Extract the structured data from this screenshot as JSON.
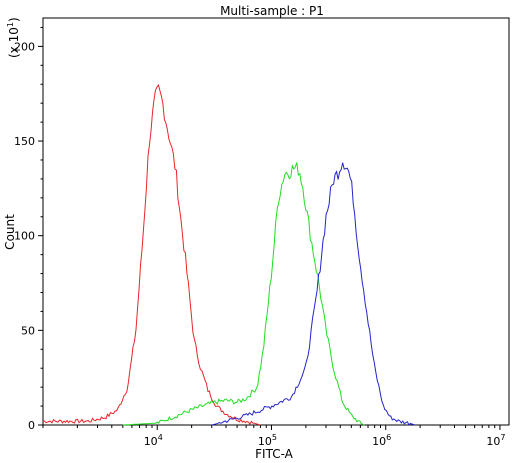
{
  "chart_data": {
    "type": "line",
    "title": "Multi-sample : P1",
    "xlabel": "FITC-A",
    "ylabel": "Count",
    "y_scale_note": "(x 10",
    "y_scale_exp": "1",
    "y_scale_close": ")",
    "x_scale": "log",
    "xlim": [
      1000,
      12000000
    ],
    "ylim": [
      0,
      215
    ],
    "x_ticks": [
      {
        "value": 10000,
        "base": "10",
        "exp": "4"
      },
      {
        "value": 100000,
        "base": "10",
        "exp": "5"
      },
      {
        "value": 1000000,
        "base": "10",
        "exp": "6"
      },
      {
        "value": 10000000,
        "base": "10",
        "exp": "7"
      }
    ],
    "y_ticks": [
      {
        "value": 0,
        "label": "0"
      },
      {
        "value": 50,
        "label": "50"
      },
      {
        "value": 100,
        "label": "100"
      },
      {
        "value": 150,
        "label": "150"
      },
      {
        "value": 200,
        "label": "200"
      }
    ],
    "grid": false,
    "series": [
      {
        "color": "#e8262a",
        "x": [
          1000,
          2500,
          3500,
          4500,
          5500,
          6500,
          7500,
          8500,
          9500,
          10200,
          11000,
          12000,
          13000,
          14500,
          16000,
          17500,
          19000,
          21000,
          24000,
          28000,
          33000,
          40000,
          50000,
          60000,
          70000,
          80000
        ],
        "y": [
          2,
          2,
          4,
          8,
          20,
          50,
          100,
          150,
          172,
          177,
          172,
          160,
          150,
          135,
          110,
          90,
          70,
          45,
          30,
          18,
          10,
          6,
          3,
          2,
          1,
          0
        ]
      },
      {
        "color": "#22dd22",
        "x": [
          5000,
          10000,
          15000,
          20000,
          25000,
          32000,
          40000,
          50000,
          60000,
          75000,
          85000,
          100000,
          115000,
          130000,
          145000,
          160000,
          175000,
          190000,
          220000,
          260000,
          300000,
          350000,
          420000,
          500000,
          600000,
          650000
        ],
        "y": [
          0,
          1,
          5,
          8,
          10,
          12,
          13,
          12,
          14,
          20,
          40,
          80,
          120,
          133,
          134,
          136,
          135,
          125,
          100,
          75,
          50,
          30,
          12,
          5,
          1,
          0
        ]
      },
      {
        "color": "#2424cc",
        "x": [
          30000,
          60000,
          100000,
          150000,
          200000,
          250000,
          300000,
          350000,
          380000,
          420000,
          450000,
          480000,
          520000,
          560000,
          600000,
          700000,
          800000,
          950000,
          1100000,
          1300000,
          1600000,
          1800000
        ],
        "y": [
          0,
          5,
          10,
          15,
          30,
          70,
          110,
          130,
          133,
          140,
          137,
          133,
          120,
          100,
          85,
          55,
          30,
          10,
          4,
          2,
          1,
          0
        ]
      }
    ]
  }
}
